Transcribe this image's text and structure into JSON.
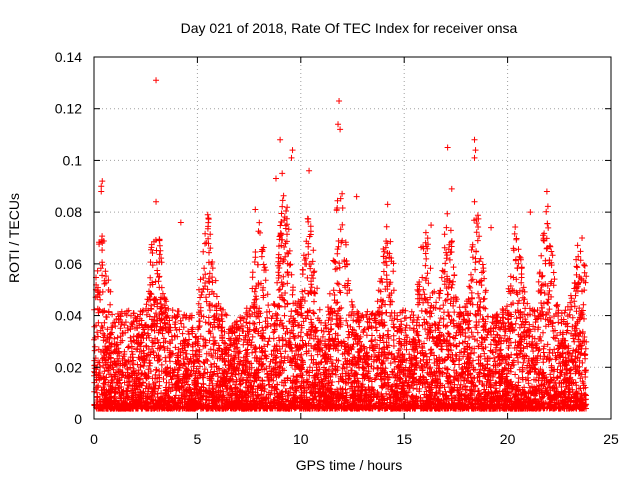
{
  "chart_data": {
    "type": "scatter",
    "title": "Day 021 of 2018, Rate Of TEC Index for receiver onsa",
    "xlabel": "GPS time / hours",
    "ylabel": "ROTI / TECUs",
    "xlim": [
      0,
      25
    ],
    "ylim": [
      0,
      0.14
    ],
    "xticks": [
      0,
      5,
      10,
      15,
      20,
      25
    ],
    "yticks": [
      0,
      0.02,
      0.04,
      0.06,
      0.08,
      0.1,
      0.12,
      0.14
    ],
    "ytick_labels": [
      "0",
      "0.02",
      "0.04",
      "0.06",
      "0.08",
      "0.1",
      "0.12",
      "0.14"
    ],
    "grid": true,
    "marker": "+",
    "series_color": "#ff0000",
    "series": [
      {
        "data_extent": {
          "x": [
            0,
            23.8
          ]
        },
        "outliers": [
          {
            "x": 3.0,
            "y": 0.131
          },
          {
            "x": 11.85,
            "y": 0.123
          },
          {
            "x": 11.8,
            "y": 0.114
          },
          {
            "x": 11.9,
            "y": 0.112
          },
          {
            "x": 9.0,
            "y": 0.108
          },
          {
            "x": 9.6,
            "y": 0.104
          },
          {
            "x": 9.55,
            "y": 0.101
          },
          {
            "x": 17.1,
            "y": 0.105
          },
          {
            "x": 18.4,
            "y": 0.108
          },
          {
            "x": 18.45,
            "y": 0.104
          },
          {
            "x": 18.4,
            "y": 0.101
          },
          {
            "x": 0.4,
            "y": 0.092
          },
          {
            "x": 0.35,
            "y": 0.09
          },
          {
            "x": 0.35,
            "y": 0.088
          },
          {
            "x": 3.0,
            "y": 0.084
          },
          {
            "x": 18.4,
            "y": 0.084
          },
          {
            "x": 17.3,
            "y": 0.089
          },
          {
            "x": 21.9,
            "y": 0.088
          },
          {
            "x": 14.2,
            "y": 0.083
          },
          {
            "x": 21.1,
            "y": 0.08
          },
          {
            "x": 8.8,
            "y": 0.093
          },
          {
            "x": 9.1,
            "y": 0.095
          },
          {
            "x": 10.4,
            "y": 0.096
          },
          {
            "x": 12.7,
            "y": 0.086
          },
          {
            "x": 7.8,
            "y": 0.081
          },
          {
            "x": 5.5,
            "y": 0.079
          },
          {
            "x": 4.2,
            "y": 0.076
          },
          {
            "x": 16.3,
            "y": 0.075
          },
          {
            "x": 19.2,
            "y": 0.074
          },
          {
            "x": 23.6,
            "y": 0.07
          }
        ]
      }
    ]
  }
}
